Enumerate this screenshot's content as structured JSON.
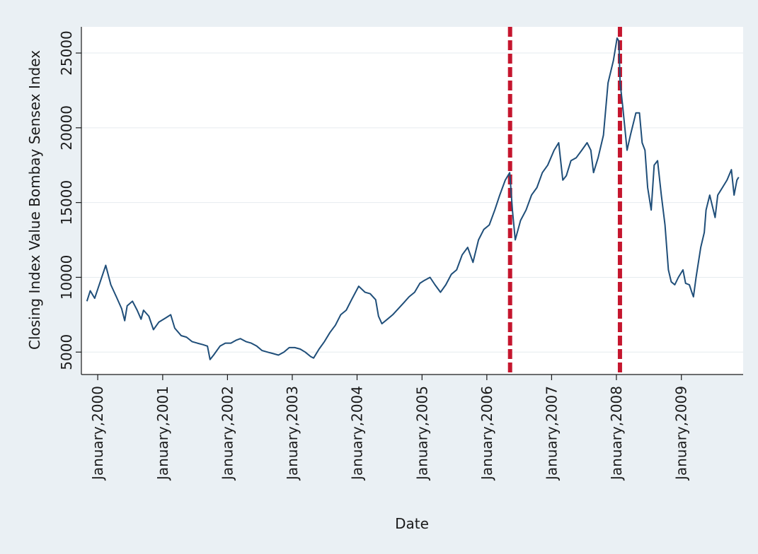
{
  "chart_data": {
    "type": "line",
    "title": "",
    "xlabel": "Date",
    "ylabel": "Closing Index Value Bombay Sensex Index",
    "ylim": [
      3500,
      26750
    ],
    "xlim": [
      "1999-10-01",
      "2009-12-15"
    ],
    "grid": true,
    "yticks": [
      5000,
      10000,
      15000,
      20000,
      25000
    ],
    "ytick_labels": [
      "5000",
      "10000",
      "15000",
      "20000",
      "25000"
    ],
    "xticks": [
      "2000-01-01",
      "2001-01-01",
      "2002-01-01",
      "2003-01-01",
      "2004-01-01",
      "2005-01-01",
      "2006-01-01",
      "2007-01-01",
      "2008-01-01",
      "2009-01-01"
    ],
    "xtick_labels": [
      "January,2000",
      "January,2001",
      "January,2002",
      "January,2003",
      "January,2004",
      "January,2005",
      "January,2006",
      "January,2007",
      "January,2008",
      "January,2009"
    ],
    "series": [
      {
        "color": "#1f4e79",
        "points": [
          [
            "1999-11-01",
            8400
          ],
          [
            "1999-11-20",
            9100
          ],
          [
            "1999-12-15",
            8600
          ],
          [
            "2000-01-15",
            9700
          ],
          [
            "2000-02-15",
            10800
          ],
          [
            "2000-03-15",
            9500
          ],
          [
            "2000-04-15",
            8700
          ],
          [
            "2000-05-15",
            7900
          ],
          [
            "2000-06-01",
            7100
          ],
          [
            "2000-06-15",
            8100
          ],
          [
            "2000-07-15",
            8400
          ],
          [
            "2000-08-10",
            7800
          ],
          [
            "2000-09-01",
            7200
          ],
          [
            "2000-09-15",
            7800
          ],
          [
            "2000-10-15",
            7400
          ],
          [
            "2000-11-10",
            6500
          ],
          [
            "2000-12-10",
            7000
          ],
          [
            "2001-01-20",
            7300
          ],
          [
            "2001-02-15",
            7500
          ],
          [
            "2001-03-10",
            6600
          ],
          [
            "2001-04-15",
            6100
          ],
          [
            "2001-05-15",
            6000
          ],
          [
            "2001-06-15",
            5700
          ],
          [
            "2001-07-15",
            5600
          ],
          [
            "2001-08-15",
            5500
          ],
          [
            "2001-09-10",
            5400
          ],
          [
            "2001-09-25",
            4500
          ],
          [
            "2001-10-15",
            4800
          ],
          [
            "2001-11-20",
            5400
          ],
          [
            "2001-12-20",
            5600
          ],
          [
            "2002-01-20",
            5600
          ],
          [
            "2002-02-20",
            5800
          ],
          [
            "2002-03-15",
            5900
          ],
          [
            "2002-04-15",
            5700
          ],
          [
            "2002-05-15",
            5600
          ],
          [
            "2002-06-15",
            5400
          ],
          [
            "2002-07-15",
            5100
          ],
          [
            "2002-08-15",
            5000
          ],
          [
            "2002-09-15",
            4900
          ],
          [
            "2002-10-15",
            4800
          ],
          [
            "2002-11-15",
            5000
          ],
          [
            "2002-12-15",
            5300
          ],
          [
            "2003-01-15",
            5300
          ],
          [
            "2003-02-15",
            5200
          ],
          [
            "2003-03-15",
            5000
          ],
          [
            "2003-04-15",
            4700
          ],
          [
            "2003-05-01",
            4600
          ],
          [
            "2003-06-01",
            5200
          ],
          [
            "2003-07-01",
            5700
          ],
          [
            "2003-08-01",
            6300
          ],
          [
            "2003-09-01",
            6800
          ],
          [
            "2003-10-01",
            7500
          ],
          [
            "2003-11-01",
            7800
          ],
          [
            "2003-12-01",
            8500
          ],
          [
            "2004-01-10",
            9400
          ],
          [
            "2004-02-15",
            9000
          ],
          [
            "2004-03-15",
            8900
          ],
          [
            "2004-04-15",
            8500
          ],
          [
            "2004-05-01",
            7400
          ],
          [
            "2004-05-20",
            6900
          ],
          [
            "2004-06-20",
            7200
          ],
          [
            "2004-07-20",
            7500
          ],
          [
            "2004-08-20",
            7900
          ],
          [
            "2004-09-20",
            8300
          ],
          [
            "2004-10-20",
            8700
          ],
          [
            "2004-11-20",
            9000
          ],
          [
            "2004-12-20",
            9600
          ],
          [
            "2005-01-15",
            9800
          ],
          [
            "2005-02-15",
            10000
          ],
          [
            "2005-03-15",
            9500
          ],
          [
            "2005-04-15",
            9000
          ],
          [
            "2005-05-15",
            9500
          ],
          [
            "2005-06-15",
            10200
          ],
          [
            "2005-07-15",
            10500
          ],
          [
            "2005-08-15",
            11500
          ],
          [
            "2005-09-15",
            12000
          ],
          [
            "2005-10-15",
            11000
          ],
          [
            "2005-11-15",
            12500
          ],
          [
            "2005-12-15",
            13200
          ],
          [
            "2006-01-15",
            13500
          ],
          [
            "2006-02-15",
            14500
          ],
          [
            "2006-03-15",
            15500
          ],
          [
            "2006-04-15",
            16500
          ],
          [
            "2006-05-10",
            17000
          ],
          [
            "2006-05-25",
            14500
          ],
          [
            "2006-06-10",
            12500
          ],
          [
            "2006-07-10",
            13800
          ],
          [
            "2006-08-10",
            14500
          ],
          [
            "2006-09-10",
            15500
          ],
          [
            "2006-10-10",
            16000
          ],
          [
            "2006-11-10",
            17000
          ],
          [
            "2006-12-10",
            17500
          ],
          [
            "2007-01-15",
            18500
          ],
          [
            "2007-02-10",
            19000
          ],
          [
            "2007-03-05",
            16500
          ],
          [
            "2007-03-25",
            16800
          ],
          [
            "2007-04-20",
            17800
          ],
          [
            "2007-05-20",
            18000
          ],
          [
            "2007-06-20",
            18500
          ],
          [
            "2007-07-20",
            19000
          ],
          [
            "2007-08-10",
            18500
          ],
          [
            "2007-08-25",
            17000
          ],
          [
            "2007-09-20",
            18000
          ],
          [
            "2007-10-20",
            19500
          ],
          [
            "2007-11-15",
            23000
          ],
          [
            "2007-12-15",
            24500
          ],
          [
            "2008-01-05",
            26000
          ],
          [
            "2008-01-15",
            25800
          ],
          [
            "2008-01-22",
            23000
          ],
          [
            "2008-02-05",
            21500
          ],
          [
            "2008-03-01",
            18500
          ],
          [
            "2008-03-20",
            19500
          ],
          [
            "2008-04-20",
            21000
          ],
          [
            "2008-05-10",
            21000
          ],
          [
            "2008-05-25",
            19000
          ],
          [
            "2008-06-10",
            18500
          ],
          [
            "2008-06-25",
            16000
          ],
          [
            "2008-07-15",
            14500
          ],
          [
            "2008-08-01",
            17500
          ],
          [
            "2008-08-20",
            17800
          ],
          [
            "2008-09-10",
            15500
          ],
          [
            "2008-10-01",
            13500
          ],
          [
            "2008-10-20",
            10500
          ],
          [
            "2008-11-05",
            9700
          ],
          [
            "2008-11-25",
            9500
          ],
          [
            "2008-12-15",
            10000
          ],
          [
            "2009-01-10",
            10500
          ],
          [
            "2009-01-25",
            9600
          ],
          [
            "2009-02-15",
            9500
          ],
          [
            "2009-03-01",
            9000
          ],
          [
            "2009-03-10",
            8700
          ],
          [
            "2009-03-25",
            10000
          ],
          [
            "2009-04-20",
            12000
          ],
          [
            "2009-05-10",
            13000
          ],
          [
            "2009-05-20",
            14500
          ],
          [
            "2009-06-10",
            15500
          ],
          [
            "2009-07-10",
            14000
          ],
          [
            "2009-07-25",
            15500
          ],
          [
            "2009-08-20",
            16000
          ],
          [
            "2009-09-15",
            16500
          ],
          [
            "2009-10-10",
            17200
          ],
          [
            "2009-10-25",
            15500
          ],
          [
            "2009-11-10",
            16500
          ],
          [
            "2009-11-20",
            16700
          ]
        ]
      }
    ],
    "annotations": [
      {
        "type": "vertical-dashed-line",
        "x": "2006-05-12",
        "color": "#c5162e"
      },
      {
        "type": "vertical-dashed-line",
        "x": "2008-01-21",
        "color": "#c5162e"
      }
    ]
  }
}
